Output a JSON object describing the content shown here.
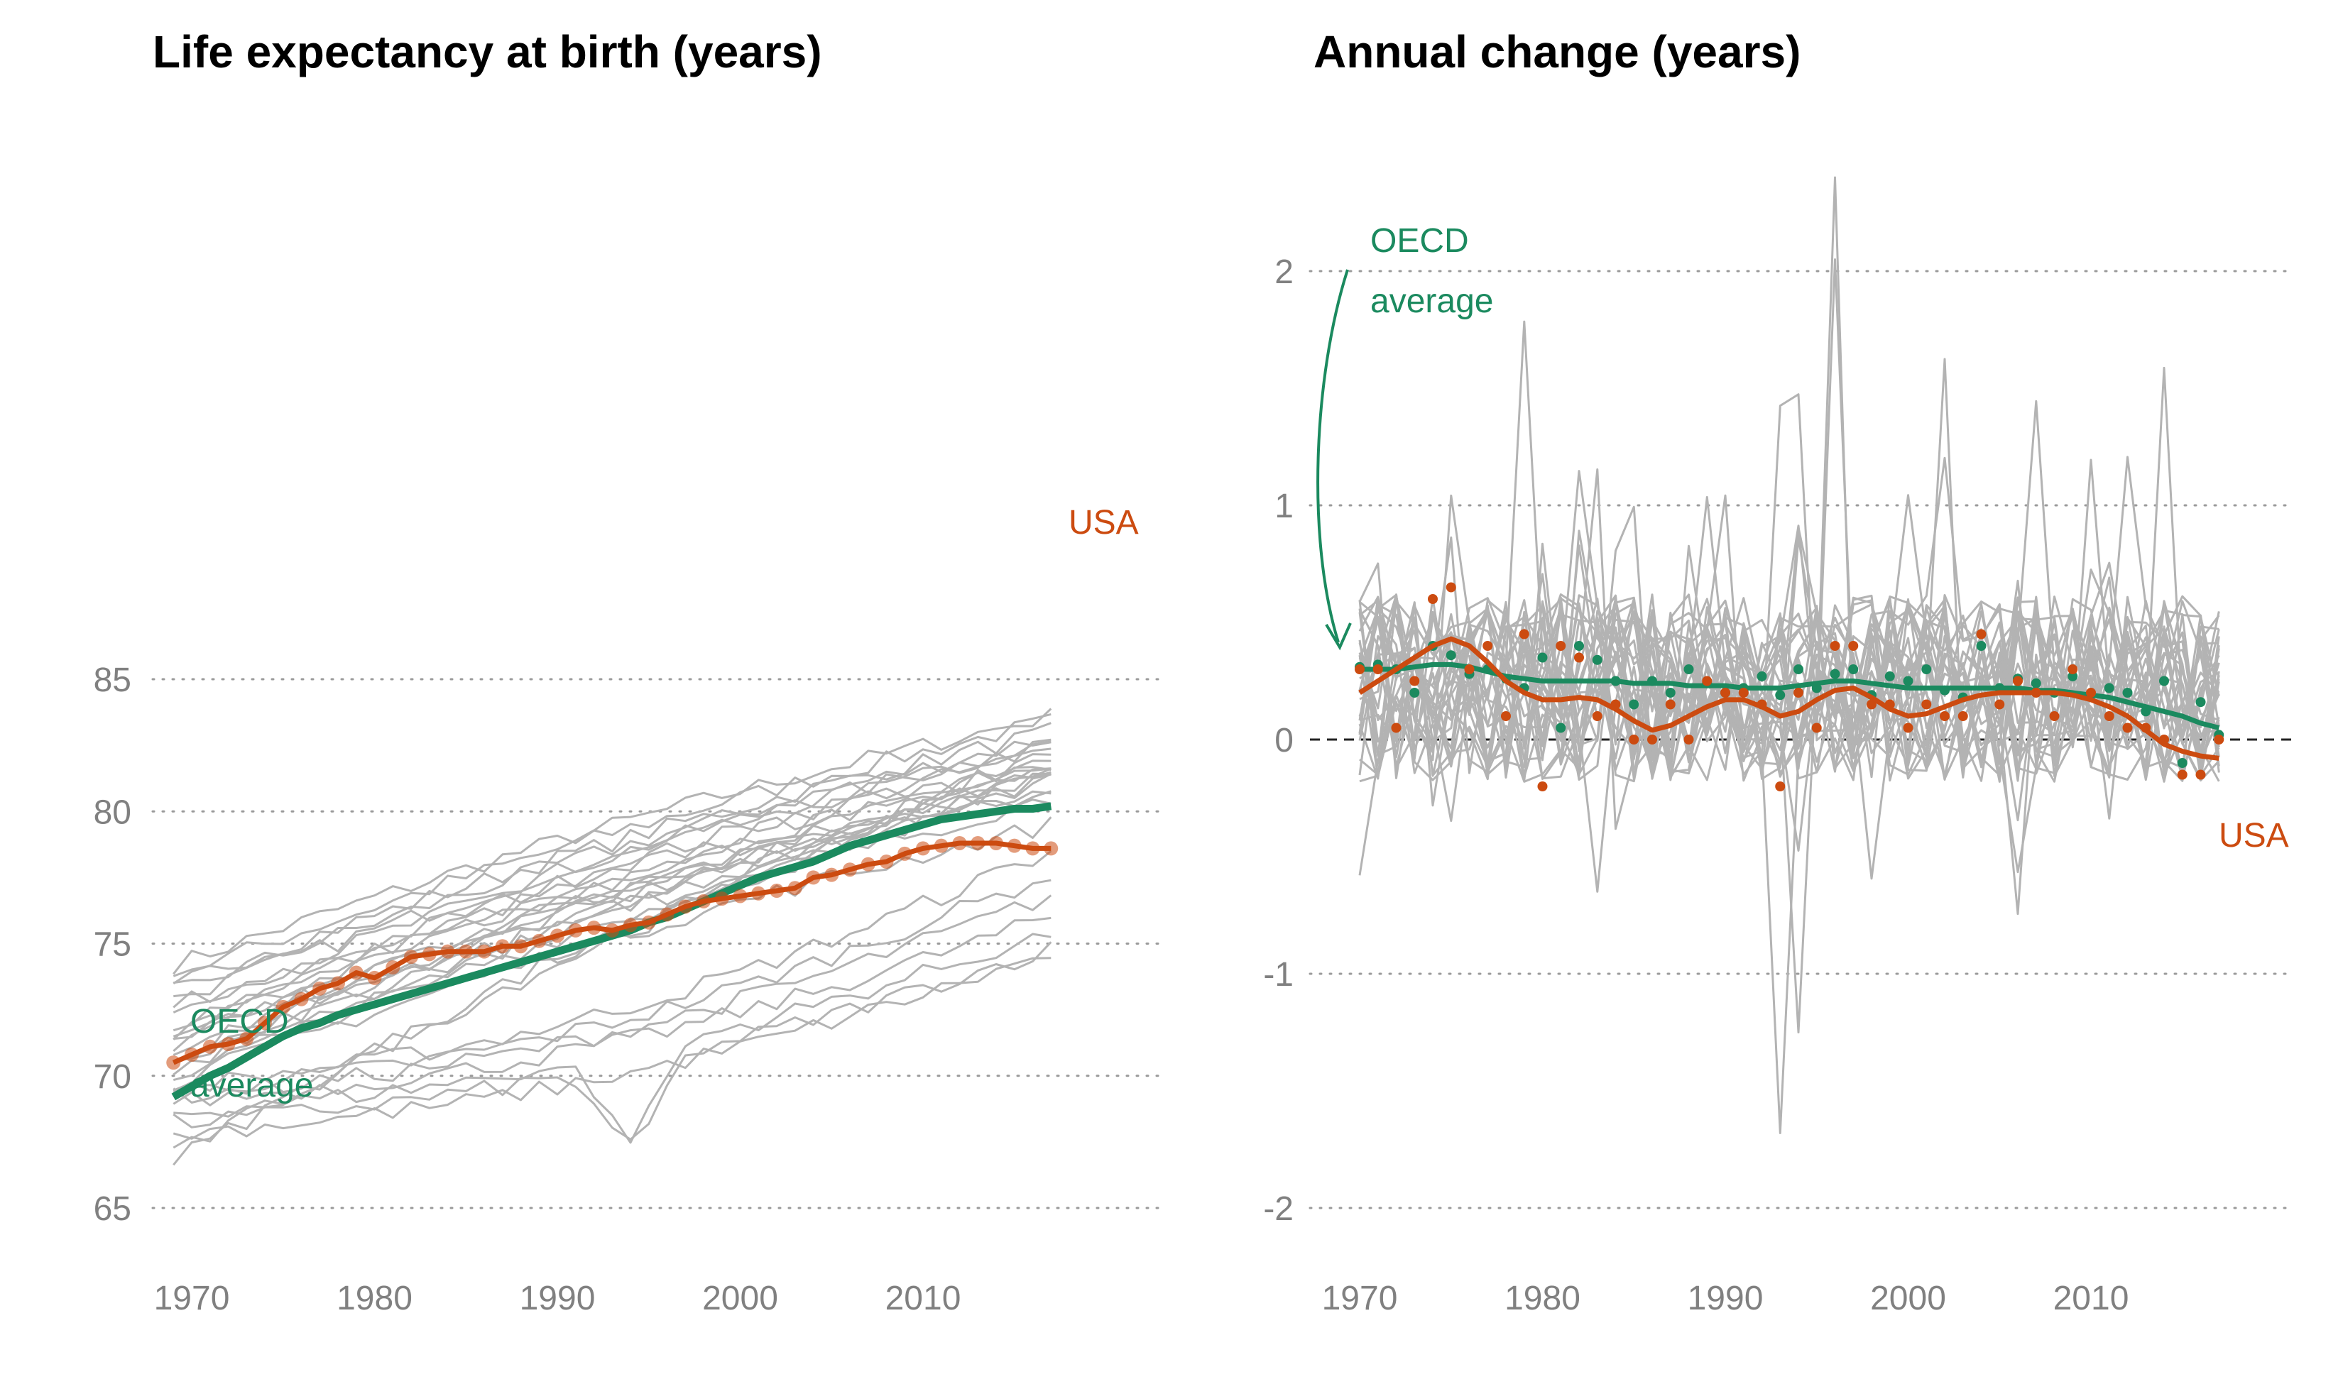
{
  "colors": {
    "oecd": "#1b8a5f",
    "usa": "#cc4b10",
    "others": "#b3b3b3",
    "grid": "#9a9a9a"
  },
  "chart_data": [
    {
      "type": "line",
      "title": "Life expectancy at birth (years)",
      "xlabel": "",
      "ylabel": "",
      "xlim": [
        1969,
        2017
      ],
      "ylim": [
        65,
        85
      ],
      "x_ticks": [
        1970,
        1980,
        1990,
        2000,
        2010
      ],
      "y_ticks": [
        65,
        70,
        75,
        80,
        85
      ],
      "grid": "horizontal dotted",
      "x": [
        1969,
        1970,
        1971,
        1972,
        1973,
        1974,
        1975,
        1976,
        1977,
        1978,
        1979,
        1980,
        1981,
        1982,
        1983,
        1984,
        1985,
        1986,
        1987,
        1988,
        1989,
        1990,
        1991,
        1992,
        1993,
        1994,
        1995,
        1996,
        1997,
        1998,
        1999,
        2000,
        2001,
        2002,
        2003,
        2004,
        2005,
        2006,
        2007,
        2008,
        2009,
        2010,
        2011,
        2012,
        2013,
        2014,
        2015,
        2016,
        2017
      ],
      "series": [
        {
          "name": "OECD average",
          "role": "oecd",
          "values": [
            69.2,
            69.6,
            70.0,
            70.3,
            70.7,
            71.1,
            71.5,
            71.8,
            72.0,
            72.3,
            72.5,
            72.7,
            72.9,
            73.1,
            73.3,
            73.5,
            73.7,
            73.9,
            74.1,
            74.3,
            74.5,
            74.7,
            74.9,
            75.1,
            75.3,
            75.5,
            75.8,
            76.0,
            76.3,
            76.6,
            76.9,
            77.2,
            77.5,
            77.7,
            77.9,
            78.1,
            78.4,
            78.7,
            78.9,
            79.1,
            79.3,
            79.5,
            79.7,
            79.8,
            79.9,
            80.0,
            80.1,
            80.1,
            80.2
          ]
        },
        {
          "name": "USA",
          "role": "usa",
          "values": [
            70.5,
            70.8,
            71.1,
            71.2,
            71.4,
            72.0,
            72.6,
            72.9,
            73.3,
            73.5,
            73.9,
            73.7,
            74.1,
            74.5,
            74.6,
            74.7,
            74.7,
            74.7,
            74.9,
            74.9,
            75.1,
            75.3,
            75.5,
            75.6,
            75.5,
            75.7,
            75.8,
            76.1,
            76.4,
            76.6,
            76.7,
            76.8,
            76.9,
            77.0,
            77.1,
            77.5,
            77.6,
            77.8,
            78.0,
            78.1,
            78.4,
            78.6,
            78.7,
            78.8,
            78.8,
            78.8,
            78.7,
            78.6,
            78.6
          ]
        }
      ],
      "labels": {
        "usa": "USA",
        "oecd_line1": "OECD",
        "oecd_line2": "average"
      }
    },
    {
      "type": "line",
      "title": "Annual change (years)",
      "xlabel": "",
      "ylabel": "",
      "xlim": [
        1969,
        2017
      ],
      "ylim": [
        -2,
        2.5
      ],
      "x_ticks": [
        1970,
        1980,
        1990,
        2000,
        2010
      ],
      "y_ticks": [
        -2,
        -1,
        0,
        1,
        2
      ],
      "grid": "horizontal dotted",
      "x": [
        1970,
        1971,
        1972,
        1973,
        1974,
        1975,
        1976,
        1977,
        1978,
        1979,
        1980,
        1981,
        1982,
        1983,
        1984,
        1985,
        1986,
        1987,
        1988,
        1989,
        1990,
        1991,
        1992,
        1993,
        1994,
        1995,
        1996,
        1997,
        1998,
        1999,
        2000,
        2001,
        2002,
        2003,
        2004,
        2005,
        2006,
        2007,
        2008,
        2009,
        2010,
        2011,
        2012,
        2013,
        2014,
        2015,
        2016,
        2017
      ],
      "series": [
        {
          "name": "OECD average",
          "role": "oecd",
          "kind": "points",
          "values": [
            0.31,
            0.32,
            0.3,
            0.2,
            0.4,
            0.36,
            0.28,
            0.3,
            0.26,
            0.22,
            0.35,
            0.05,
            0.4,
            0.34,
            0.25,
            0.15,
            0.25,
            0.2,
            0.3,
            0.24,
            0.2,
            0.22,
            0.27,
            0.19,
            0.3,
            0.22,
            0.28,
            0.3,
            0.19,
            0.27,
            0.25,
            0.3,
            0.21,
            0.18,
            0.4,
            0.22,
            0.26,
            0.24,
            0.2,
            0.27,
            0.19,
            0.22,
            0.2,
            0.12,
            0.25,
            -0.1,
            0.16,
            0.02
          ]
        },
        {
          "name": "OECD average",
          "role": "oecd",
          "kind": "smooth",
          "values": [
            0.3,
            0.3,
            0.3,
            0.31,
            0.32,
            0.32,
            0.31,
            0.29,
            0.27,
            0.26,
            0.25,
            0.25,
            0.25,
            0.25,
            0.25,
            0.24,
            0.24,
            0.24,
            0.23,
            0.23,
            0.23,
            0.22,
            0.22,
            0.22,
            0.23,
            0.24,
            0.25,
            0.25,
            0.24,
            0.23,
            0.22,
            0.22,
            0.22,
            0.22,
            0.22,
            0.22,
            0.22,
            0.21,
            0.21,
            0.2,
            0.19,
            0.18,
            0.16,
            0.14,
            0.12,
            0.1,
            0.07,
            0.05
          ]
        },
        {
          "name": "USA",
          "role": "usa",
          "kind": "points",
          "values": [
            0.3,
            0.3,
            0.05,
            0.25,
            0.6,
            0.65,
            0.3,
            0.4,
            0.1,
            0.45,
            -0.2,
            0.4,
            0.35,
            0.1,
            0.15,
            0.0,
            0.0,
            0.15,
            0.0,
            0.25,
            0.2,
            0.2,
            0.15,
            -0.2,
            0.2,
            0.05,
            0.4,
            0.4,
            0.15,
            0.15,
            0.05,
            0.15,
            0.1,
            0.1,
            0.45,
            0.15,
            0.25,
            0.2,
            0.1,
            0.3,
            0.2,
            0.1,
            0.05,
            0.05,
            0.0,
            -0.15,
            -0.15,
            0.0
          ]
        },
        {
          "name": "USA",
          "role": "usa",
          "kind": "smooth",
          "values": [
            0.2,
            0.25,
            0.3,
            0.35,
            0.4,
            0.43,
            0.4,
            0.33,
            0.25,
            0.2,
            0.17,
            0.17,
            0.18,
            0.17,
            0.13,
            0.08,
            0.04,
            0.06,
            0.1,
            0.14,
            0.17,
            0.17,
            0.14,
            0.1,
            0.12,
            0.17,
            0.21,
            0.22,
            0.18,
            0.13,
            0.1,
            0.11,
            0.14,
            0.17,
            0.19,
            0.2,
            0.2,
            0.2,
            0.2,
            0.19,
            0.17,
            0.14,
            0.1,
            0.04,
            -0.02,
            -0.05,
            -0.07,
            -0.08
          ]
        }
      ],
      "labels": {
        "usa": "USA",
        "oecd_line1": "OECD",
        "oecd_line2": "average"
      }
    }
  ]
}
